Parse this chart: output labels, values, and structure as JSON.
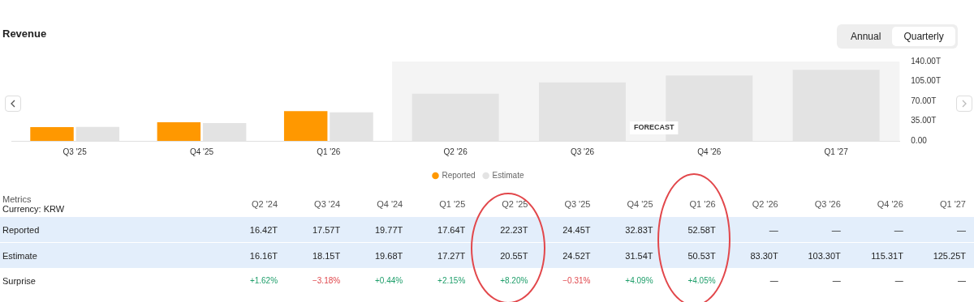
{
  "chart_data": [
    {
      "type": "bar",
      "title": "Revenue",
      "categories": [
        "Q3 '25",
        "Q4 '25",
        "Q1 '26",
        "Q2 '26",
        "Q3 '26",
        "Q4 '26",
        "Q1 '27"
      ],
      "series": [
        {
          "name": "Reported",
          "color": "#ff9800",
          "values": [
            24.45,
            32.83,
            52.58,
            null,
            null,
            null,
            null
          ]
        },
        {
          "name": "Estimate",
          "color": "#e3e3e3",
          "values": [
            24.52,
            31.54,
            50.53,
            83.3,
            103.3,
            115.31,
            125.25
          ]
        }
      ],
      "ylim": [
        0,
        140
      ],
      "yticks": [
        {
          "value": 0,
          "label": "0.00"
        },
        {
          "value": 35,
          "label": "35.00T"
        },
        {
          "value": 70,
          "label": "70.00T"
        },
        {
          "value": 105,
          "label": "105.00T"
        },
        {
          "value": 140,
          "label": "140.00T"
        }
      ],
      "grid": false,
      "legend": "bottom",
      "bands": [
        {
          "axis": "x",
          "from": "Q2 '26",
          "to": "Q1 '27",
          "label": "FORECAST",
          "color": "#f4f4f4"
        }
      ],
      "annotations": [
        "Annual",
        "Quarterly"
      ]
    },
    {
      "type": "other",
      "categories": [
        "Q2 '24",
        "Q3 '24",
        "Q4 '24",
        "Q1 '25",
        "Q2 '25",
        "Q3 '25",
        "Q4 '25",
        "Q1 '26",
        "Q2 '26",
        "Q3 '26",
        "Q4 '26",
        "Q1 '27"
      ],
      "series": [
        {
          "name": "Reported",
          "values": [
            16.42,
            17.57,
            19.77,
            17.64,
            22.23,
            24.45,
            32.83,
            52.58,
            null,
            null,
            null,
            null
          ],
          "value_labels": [
            "16.42T",
            "17.57T",
            "19.77T",
            "17.64T",
            "22.23T",
            "24.45T",
            "32.83T",
            "52.58T",
            "—",
            "—",
            "—",
            "—"
          ]
        },
        {
          "name": "Estimate",
          "values": [
            16.16,
            18.15,
            19.68,
            17.27,
            20.55,
            24.52,
            31.54,
            50.53,
            83.3,
            103.3,
            115.31,
            125.25
          ],
          "value_labels": [
            "16.16T",
            "18.15T",
            "19.68T",
            "17.27T",
            "20.55T",
            "24.52T",
            "31.54T",
            "50.53T",
            "83.30T",
            "103.30T",
            "115.31T",
            "125.25T"
          ]
        },
        {
          "name": "Surprise",
          "values": [
            1.62,
            -3.18,
            0.44,
            2.15,
            8.2,
            -0.31,
            4.09,
            4.05,
            null,
            null,
            null,
            null
          ],
          "value_labels": [
            "+1.62%",
            "−3.18%",
            "+0.44%",
            "+2.15%",
            "+8.20%",
            "−0.31%",
            "+4.09%",
            "+4.05%",
            "—",
            "—",
            "—",
            "—"
          ],
          "colors": [
            "#1e9e6a",
            "#e0474c",
            "#1e9e6a",
            "#1e9e6a",
            "#1e9e6a",
            "#e0474c",
            "#1e9e6a",
            "#1e9e6a",
            "#222222",
            "#222222",
            "#222222",
            "#222222"
          ]
        }
      ],
      "annotations": [
        "Metrics",
        "Currency: KRW"
      ]
    }
  ]
}
